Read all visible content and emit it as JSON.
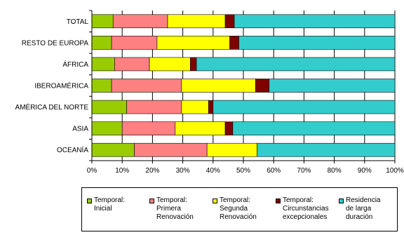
{
  "chart_data": {
    "type": "bar",
    "orientation": "horizontal",
    "stacked": "100%",
    "categories": [
      "TOTAL",
      "RESTO DE EUROPA",
      "ÁFRICA",
      "IBEROAMÉRICA",
      "AMÉRICA DEL NORTE",
      "ASIA",
      "OCEANÍA"
    ],
    "series": [
      {
        "name": "Temporal: Inicial",
        "color": "#99cc00",
        "values": [
          7,
          6.5,
          7.5,
          6.5,
          11.5,
          10,
          14
        ]
      },
      {
        "name": "Temporal: Primera Renovación",
        "color": "#ff8080",
        "values": [
          18,
          15,
          11.5,
          23,
          18,
          17.5,
          24
        ]
      },
      {
        "name": "Temporal: Segunda Renovación",
        "color": "#ffff00",
        "values": [
          19,
          24,
          13.5,
          24.5,
          9,
          16.5,
          16.5
        ]
      },
      {
        "name": "Temporal: Circunstancias excepcionales",
        "color": "#800000",
        "values": [
          3,
          3,
          2,
          4.5,
          1.5,
          2.5,
          0
        ]
      },
      {
        "name": "Residencia de larga duración",
        "color": "#33cccc",
        "values": [
          53,
          51.5,
          65.5,
          41.5,
          60,
          53.5,
          45.5
        ]
      }
    ],
    "xlim": [
      0,
      100
    ],
    "x_ticks": [
      "0%",
      "10%",
      "20%",
      "30%",
      "40%",
      "50%",
      "60%",
      "70%",
      "80%",
      "90%",
      "100%"
    ],
    "grid": "vertical",
    "legend_position": "bottom"
  },
  "legend": {
    "items": [
      {
        "label": "Temporal:\nInicial",
        "color": "#99cc00"
      },
      {
        "label": "Temporal:\nPrimera\nRenovación",
        "color": "#ff8080"
      },
      {
        "label": "Temporal:\nSegunda\nRenovación",
        "color": "#ffff00"
      },
      {
        "label": "Temporal:\nCircunstancias\nexcepcionales",
        "color": "#800000"
      },
      {
        "label": "Residencia\nde larga\nduración",
        "color": "#33cccc"
      }
    ]
  }
}
